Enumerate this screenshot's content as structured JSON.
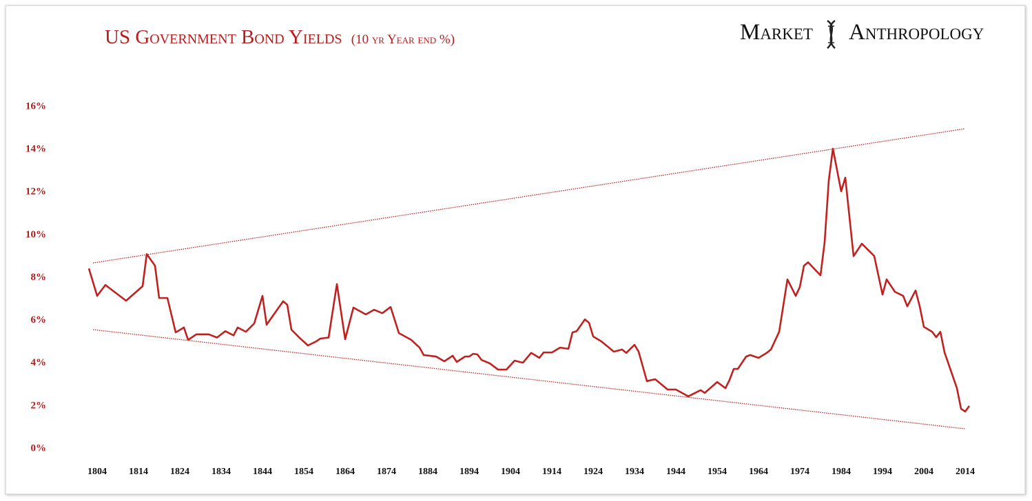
{
  "chart_data": {
    "type": "line",
    "title": "US Government Bond Yields",
    "subtitle": "(10 yr Year end %)",
    "logo": [
      "Market",
      "Anthropology"
    ],
    "x": [
      1802,
      1804,
      1806,
      1811,
      1815,
      1816,
      1818,
      1819,
      1821,
      1823,
      1825,
      1826,
      1828,
      1831,
      1833,
      1835,
      1837,
      1838,
      1840,
      1842,
      1844,
      1845,
      1849,
      1850,
      1851,
      1853,
      1855,
      1857,
      1858,
      1860,
      1862,
      1864,
      1866,
      1869,
      1871,
      1873,
      1875,
      1877,
      1880,
      1882,
      1883,
      1886,
      1888,
      1890,
      1891,
      1893,
      1894,
      1895,
      1896,
      1897,
      1899,
      1901,
      1903,
      1905,
      1907,
      1909,
      1911,
      1912,
      1914,
      1916,
      1918,
      1919,
      1920,
      1922,
      1923,
      1924,
      1926,
      1929,
      1931,
      1932,
      1934,
      1935,
      1937,
      1939,
      1942,
      1944,
      1947,
      1950,
      1951,
      1954,
      1956,
      1957,
      1958,
      1959,
      1961,
      1962,
      1964,
      1966,
      1967,
      1969,
      1971,
      1973,
      1974,
      1975,
      1976,
      1979,
      1980,
      1981,
      1982,
      1984,
      1985,
      1987,
      1989,
      1992,
      1994,
      1995,
      1997,
      1999,
      2000,
      2002,
      2003,
      2004,
      2006,
      2007,
      2008,
      2009,
      2012,
      2013,
      2014,
      2015
    ],
    "series": [
      {
        "color": "#c0201e",
        "values": [
          8.43,
          7.15,
          7.66,
          6.92,
          7.6,
          9.1,
          8.56,
          7.05,
          7.05,
          5.44,
          5.67,
          5.09,
          5.35,
          5.35,
          5.2,
          5.5,
          5.3,
          5.67,
          5.47,
          5.86,
          7.15,
          5.8,
          6.9,
          6.73,
          5.57,
          5.18,
          4.83,
          5.02,
          5.15,
          5.2,
          7.7,
          5.12,
          6.6,
          6.28,
          6.5,
          6.34,
          6.63,
          5.41,
          5.09,
          4.73,
          4.38,
          4.31,
          4.09,
          4.35,
          4.06,
          4.31,
          4.31,
          4.44,
          4.41,
          4.15,
          3.99,
          3.7,
          3.7,
          4.12,
          4.02,
          4.48,
          4.25,
          4.5,
          4.5,
          4.73,
          4.67,
          5.44,
          5.5,
          6.05,
          5.89,
          5.25,
          5.02,
          4.54,
          4.64,
          4.48,
          4.86,
          4.54,
          3.16,
          3.25,
          2.77,
          2.77,
          2.45,
          2.74,
          2.61,
          3.12,
          2.83,
          3.22,
          3.73,
          3.73,
          4.31,
          4.38,
          4.25,
          4.48,
          4.64,
          5.47,
          7.92,
          7.15,
          7.57,
          8.56,
          8.72,
          8.11,
          9.66,
          12.55,
          14.04,
          12.04,
          12.68,
          9.01,
          9.59,
          9.01,
          7.21,
          7.92,
          7.34,
          7.15,
          6.66,
          7.4,
          6.66,
          5.7,
          5.47,
          5.22,
          5.47,
          4.51,
          2.83,
          1.87,
          1.74,
          2.0
        ]
      }
    ],
    "trend_lines": [
      {
        "color": "#c0201e",
        "x": [
          1803,
          2014
        ],
        "values": [
          8.69,
          14.97
        ]
      },
      {
        "color": "#c0201e",
        "x": [
          1803,
          2014
        ],
        "values": [
          5.57,
          0.93
        ]
      }
    ],
    "xlim": [
      1800,
      2017
    ],
    "xticks": [
      1804,
      1814,
      1824,
      1834,
      1844,
      1854,
      1864,
      1874,
      1884,
      1894,
      1904,
      1914,
      1924,
      1934,
      1944,
      1954,
      1964,
      1974,
      1984,
      1994,
      2004,
      2014
    ],
    "ylim": [
      0,
      16
    ],
    "yticks": [
      {
        "value": 0,
        "label": "0%"
      },
      {
        "value": 2,
        "label": "2%"
      },
      {
        "value": 4,
        "label": "4%"
      },
      {
        "value": 6,
        "label": "6%"
      },
      {
        "value": 8,
        "label": "8%"
      },
      {
        "value": 10,
        "label": "10%"
      },
      {
        "value": 12,
        "label": "12%"
      },
      {
        "value": 14,
        "label": "14%"
      },
      {
        "value": 16,
        "label": "16%"
      }
    ],
    "grid": false
  }
}
